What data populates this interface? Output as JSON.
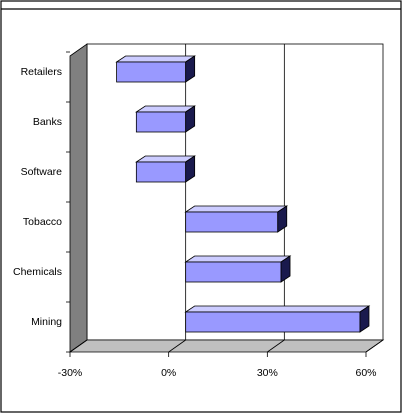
{
  "chart_data": {
    "type": "bar",
    "orientation": "horizontal",
    "style": "3d",
    "categories": [
      "Retailers",
      "Banks",
      "Software",
      "Tobacco",
      "Chemicals",
      "Mining"
    ],
    "values": [
      -21,
      -15,
      -15,
      28,
      29,
      53
    ],
    "xlim": [
      -30,
      60
    ],
    "xticks": [
      -30,
      0,
      30,
      60
    ],
    "xtick_labels": [
      "-30%",
      "0%",
      "30%",
      "60%"
    ],
    "grid": true,
    "legend": "none",
    "colors": {
      "bar_face": "#9999ff",
      "bar_top": "#ccccff",
      "bar_side": "#1a1a4d",
      "floor": "#c0c0c0",
      "side_wall": "#808080"
    }
  }
}
